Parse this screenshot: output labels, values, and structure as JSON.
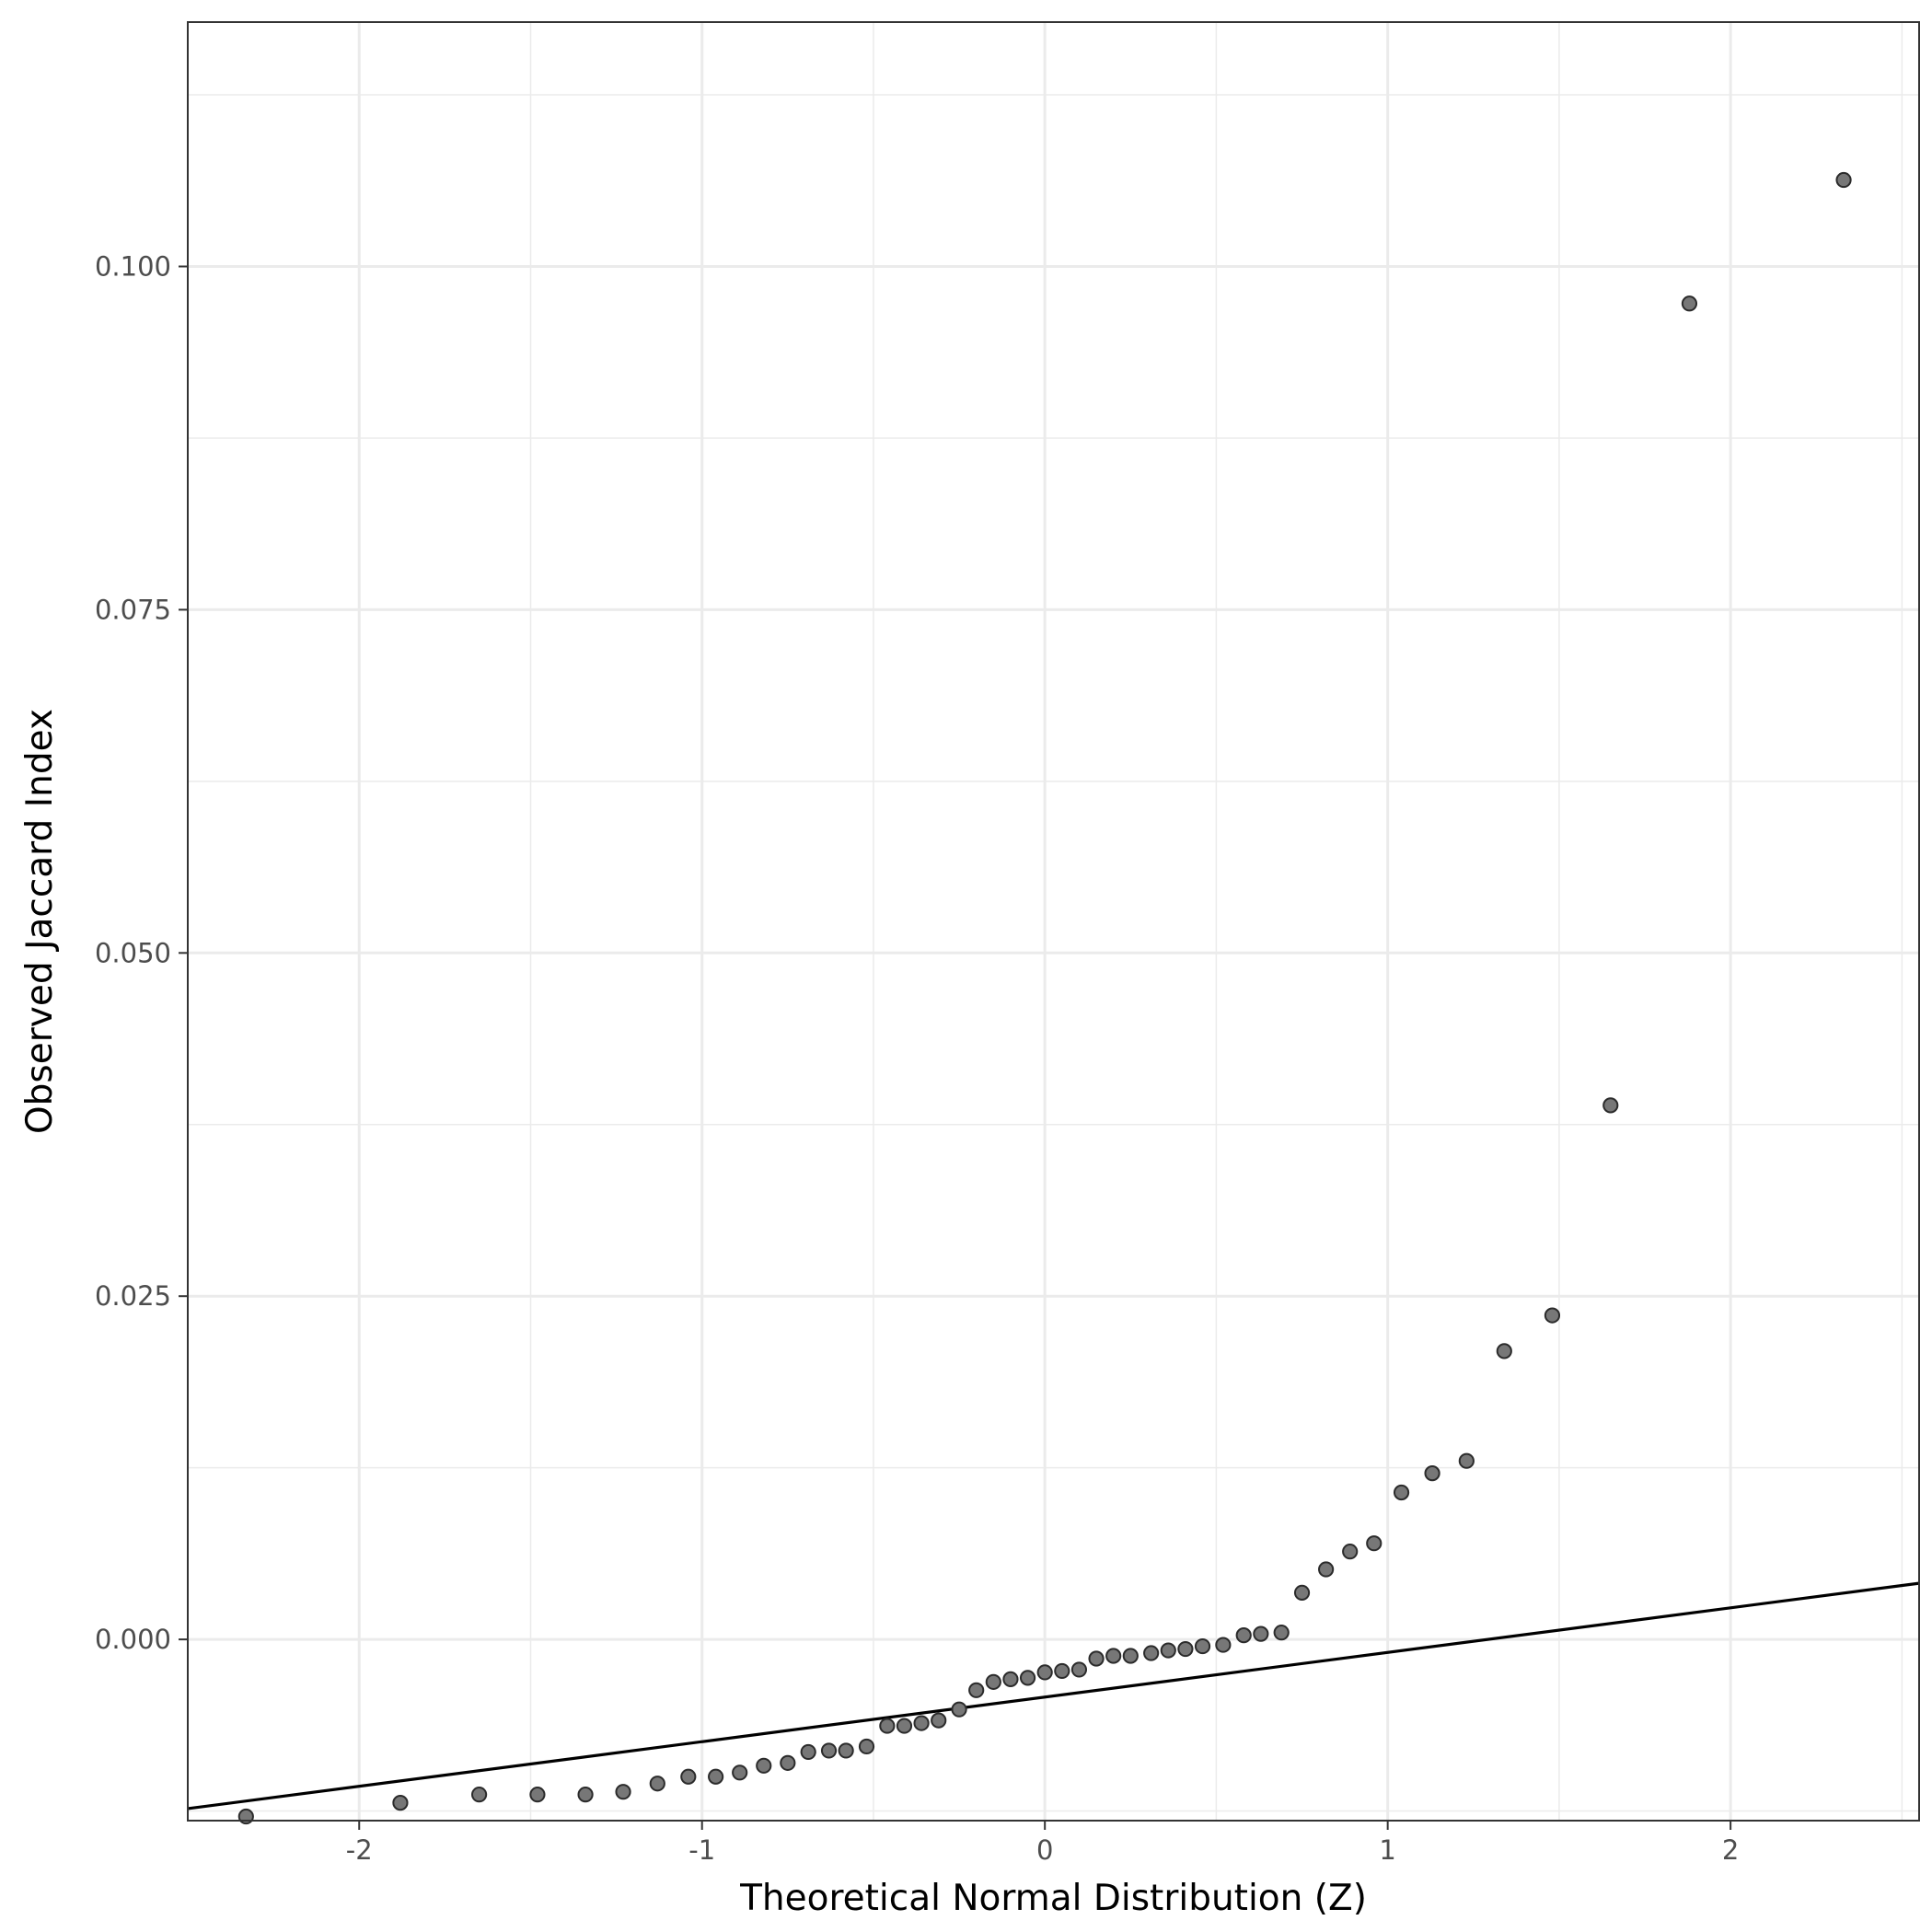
{
  "chart_data": {
    "type": "scatter",
    "title": "",
    "xlabel": "Theoretical Normal Distribution (Z)",
    "ylabel": "Observed Jaccard Index",
    "xlim": [
      -2.5,
      2.55
    ],
    "ylim": [
      -0.0132,
      0.1178
    ],
    "x_ticks": [
      -2,
      -1,
      0,
      1,
      2
    ],
    "x_tick_labels": [
      "-2",
      "-1",
      "0",
      "1",
      "2"
    ],
    "y_ticks": [
      0.0,
      0.025,
      0.05,
      0.075,
      0.1
    ],
    "y_tick_labels": [
      "0.000",
      "0.025",
      "0.050",
      "0.075",
      "0.100"
    ],
    "grid": true,
    "reference_line": {
      "slope": 0.00325,
      "intercept": -0.0042
    },
    "points": [
      [
        -2.33,
        -0.0129
      ],
      [
        -1.88,
        -0.0119
      ],
      [
        -1.65,
        -0.0113
      ],
      [
        -1.48,
        -0.0113
      ],
      [
        -1.34,
        -0.0113
      ],
      [
        -1.23,
        -0.0111
      ],
      [
        -1.13,
        -0.0105
      ],
      [
        -1.04,
        -0.01
      ],
      [
        -0.96,
        -0.01
      ],
      [
        -0.89,
        -0.0097
      ],
      [
        -0.82,
        -0.0092
      ],
      [
        -0.75,
        -0.009
      ],
      [
        -0.69,
        -0.0082
      ],
      [
        -0.63,
        -0.0081
      ],
      [
        -0.58,
        -0.0081
      ],
      [
        -0.52,
        -0.0078
      ],
      [
        -0.46,
        -0.0063
      ],
      [
        -0.41,
        -0.0063
      ],
      [
        -0.36,
        -0.0061
      ],
      [
        -0.31,
        -0.0059
      ],
      [
        -0.25,
        -0.0051
      ],
      [
        -0.2,
        -0.0037
      ],
      [
        -0.15,
        -0.0031
      ],
      [
        -0.1,
        -0.0029
      ],
      [
        -0.05,
        -0.0028
      ],
      [
        0.0,
        -0.0024
      ],
      [
        0.05,
        -0.0023
      ],
      [
        0.1,
        -0.0022
      ],
      [
        0.15,
        -0.0014
      ],
      [
        0.2,
        -0.0012
      ],
      [
        0.25,
        -0.0012
      ],
      [
        0.31,
        -0.001
      ],
      [
        0.36,
        -0.0008
      ],
      [
        0.41,
        -0.0007
      ],
      [
        0.46,
        -0.0005
      ],
      [
        0.52,
        -0.0004
      ],
      [
        0.58,
        0.0003
      ],
      [
        0.63,
        0.0004
      ],
      [
        0.69,
        0.0005
      ],
      [
        0.75,
        0.0034
      ],
      [
        0.82,
        0.0051
      ],
      [
        0.89,
        0.0064
      ],
      [
        0.96,
        0.007
      ],
      [
        1.04,
        0.0107
      ],
      [
        1.13,
        0.0121
      ],
      [
        1.23,
        0.013
      ],
      [
        1.34,
        0.021
      ],
      [
        1.48,
        0.0236
      ],
      [
        1.65,
        0.0389
      ],
      [
        1.88,
        0.0973
      ],
      [
        2.33,
        0.1063
      ]
    ]
  }
}
